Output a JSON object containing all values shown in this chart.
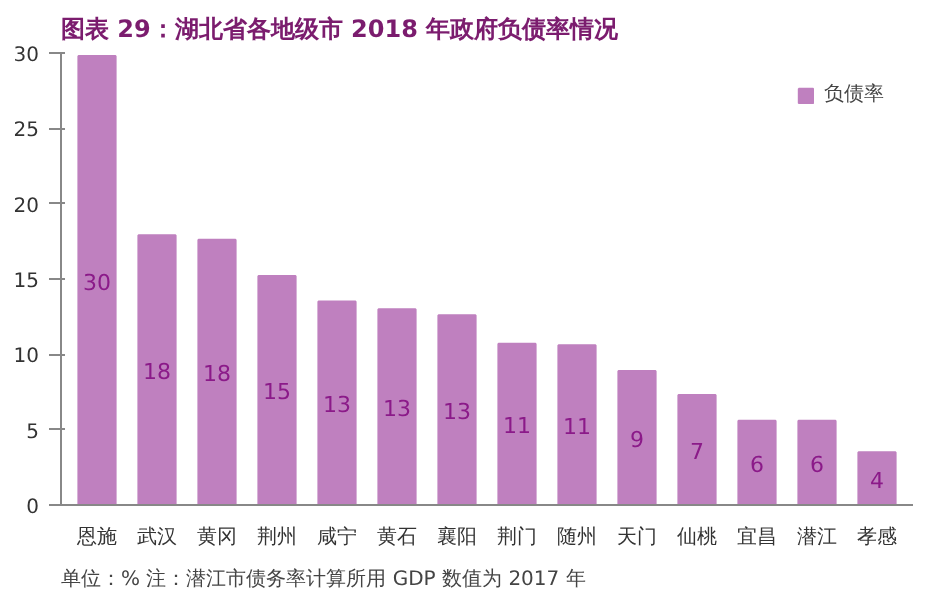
{
  "chart_data": {
    "type": "bar",
    "title": "图表 29：湖北省各地级市 2018 年政府负债率情况",
    "categories": [
      "恩施",
      "武汉",
      "黄冈",
      "荆州",
      "咸宁",
      "黄石",
      "襄阳",
      "荆门",
      "随州",
      "天门",
      "仙桃",
      "宜昌",
      "潜江",
      "孝感"
    ],
    "series": [
      {
        "name": "负债率",
        "color": "#bf80bf",
        "values": [
          29.8,
          17.9,
          17.6,
          15.2,
          13.5,
          13.0,
          12.6,
          10.7,
          10.6,
          8.9,
          7.3,
          5.6,
          5.6,
          3.5
        ],
        "value_labels": [
          "30",
          "18",
          "18",
          "15",
          "13",
          "13",
          "13",
          "11",
          "11",
          "9",
          "7",
          "6",
          "6",
          "4"
        ]
      }
    ],
    "ylim": [
      0,
      30
    ],
    "yticks": [
      0,
      5,
      10,
      15,
      20,
      25,
      30
    ],
    "grid": false,
    "legend": "top right",
    "annotations": [
      "单位：%   注：潜江市债务率计算所用 GDP 数值为 2017 年"
    ]
  }
}
